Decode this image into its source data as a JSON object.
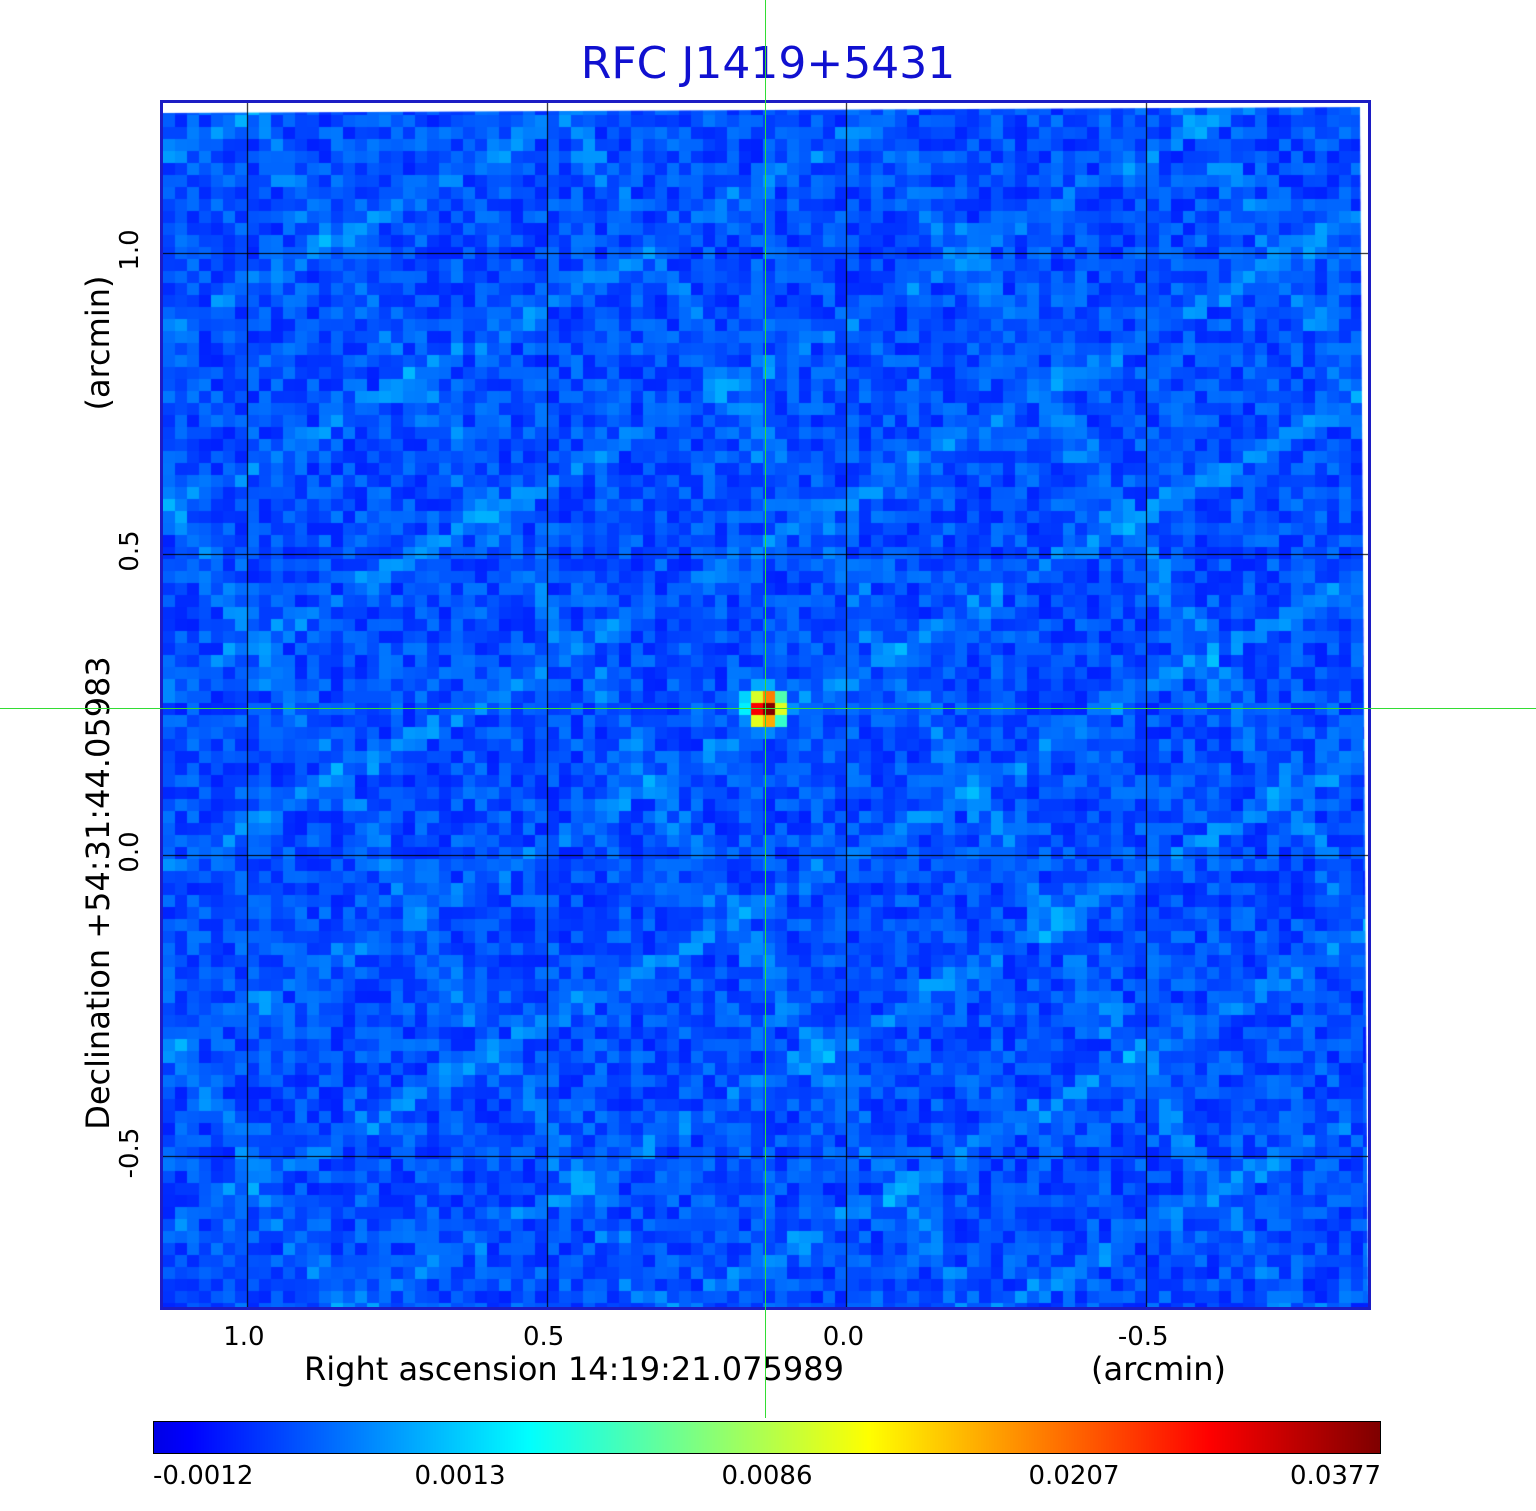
{
  "title": "RFC J1419+5431",
  "chart_data": {
    "type": "heatmap",
    "title": "RFC J1419+5431",
    "xlabel": "Right ascension  14:19:21.075989",
    "xunit": "(arcmin)",
    "ylabel": "Declination  +54:31:44.05983",
    "yunit": "(arcmin)",
    "xlim": [
      1.14,
      -0.88
    ],
    "ylim": [
      -0.76,
      1.25
    ],
    "x_ticks": [
      1.0,
      0.5,
      0.0,
      -0.5
    ],
    "x_tick_labels": [
      "1.0",
      "0.5",
      "0.0",
      "-0.5"
    ],
    "y_ticks": [
      1.0,
      0.5,
      0.0,
      -0.5
    ],
    "y_tick_labels": [
      "1.0",
      "0.5",
      "0.0",
      "-0.5"
    ],
    "grid": true,
    "source": {
      "x": 0.13,
      "y": 0.24,
      "peak": 0.0377
    },
    "crosshair": {
      "x": 0.13,
      "y": 0.24
    },
    "colorbar": {
      "tick_labels": [
        "-0.0012",
        "0.0013",
        "0.0086",
        "0.0207",
        "0.0377"
      ],
      "colormap": "jet"
    }
  },
  "colors": {
    "title": "#1010d0",
    "frame": "#1c1cc4",
    "grid": "#000000",
    "crosshair": "#33dd33"
  }
}
